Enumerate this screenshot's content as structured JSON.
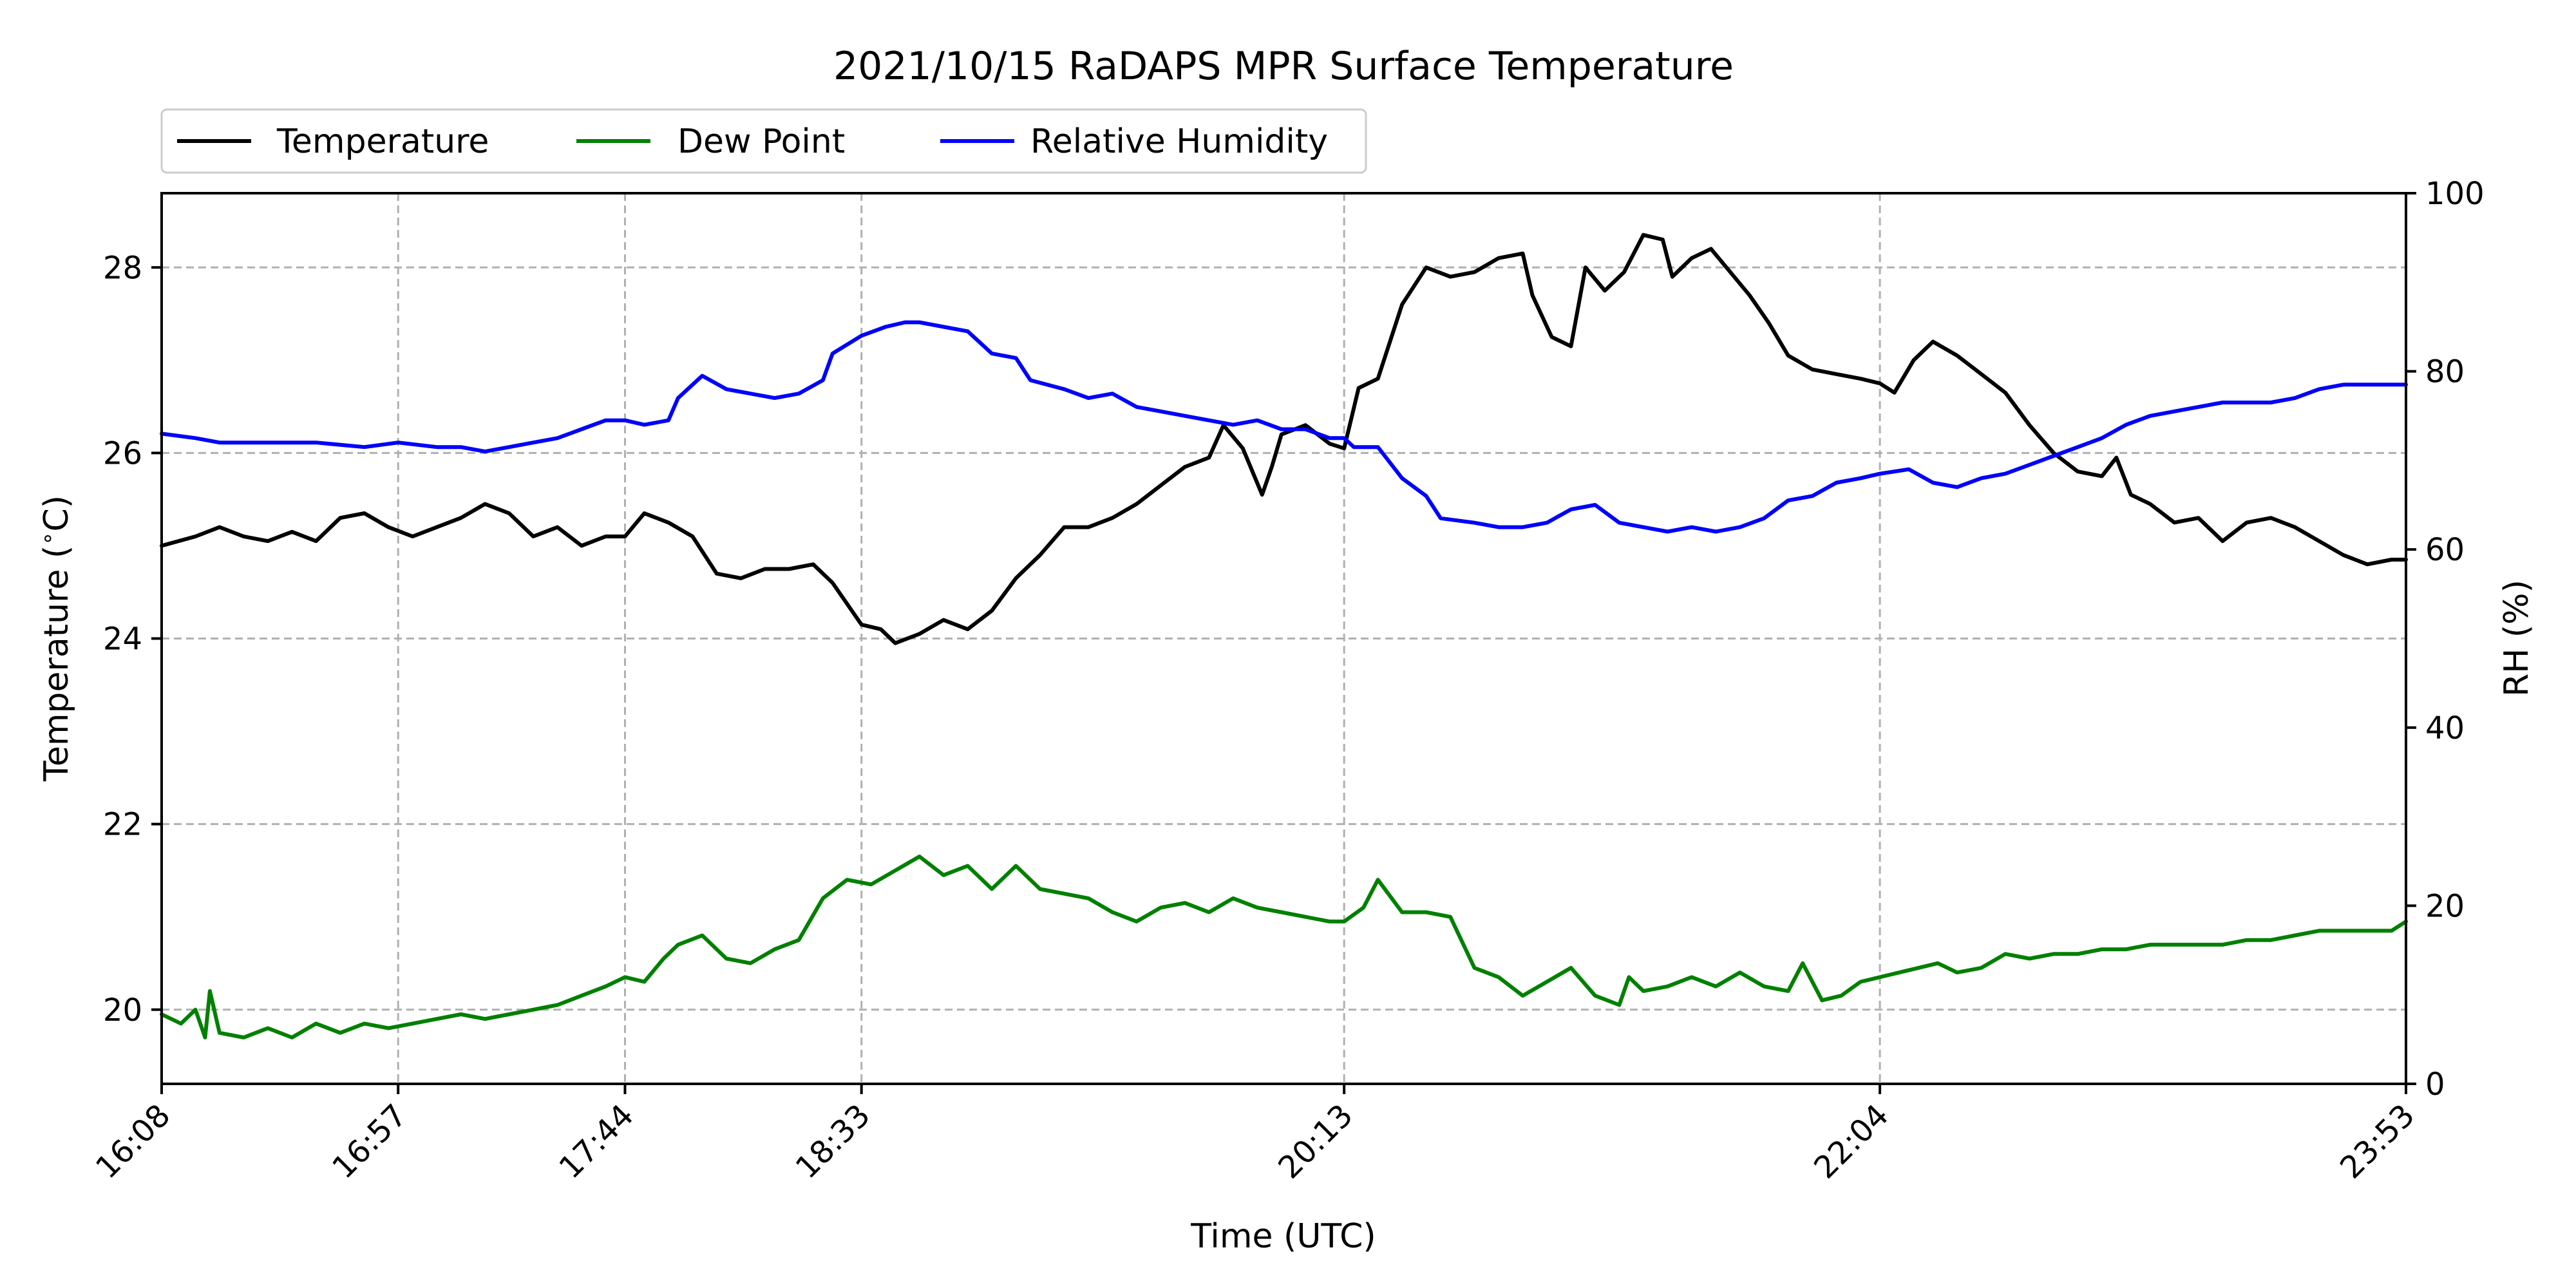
{
  "chart_data": {
    "type": "line",
    "title": "2021/10/15 RaDAPS MPR Surface Temperature",
    "xlabel": "Time (UTC)",
    "ylabel_left": "Temperature ($^\\circ$C)",
    "ylabel_right": "RH (%)",
    "xlim": [
      "16:08",
      "23:53"
    ],
    "ylim_left": [
      19.2,
      28.8
    ],
    "ylim_right": [
      0,
      100
    ],
    "x_ticks": [
      "16:08",
      "16:57",
      "17:44",
      "18:33",
      "20:13",
      "22:04",
      "23:53"
    ],
    "y_ticks_left": [
      20,
      22,
      24,
      26,
      28
    ],
    "y_ticks_right": [
      0,
      20,
      40,
      60,
      80,
      100
    ],
    "grid": true,
    "legend_position": "top-left, outside above plot",
    "series": [
      {
        "name": "Temperature",
        "axis": "left",
        "color": "#000000",
        "points": [
          [
            "16:08",
            25.0
          ],
          [
            "16:15",
            25.1
          ],
          [
            "16:20",
            25.2
          ],
          [
            "16:25",
            25.1
          ],
          [
            "16:30",
            25.05
          ],
          [
            "16:35",
            25.15
          ],
          [
            "16:40",
            25.05
          ],
          [
            "16:45",
            25.3
          ],
          [
            "16:50",
            25.35
          ],
          [
            "16:55",
            25.2
          ],
          [
            "17:00",
            25.1
          ],
          [
            "17:05",
            25.2
          ],
          [
            "17:10",
            25.3
          ],
          [
            "17:15",
            25.45
          ],
          [
            "17:20",
            25.35
          ],
          [
            "17:25",
            25.1
          ],
          [
            "17:30",
            25.2
          ],
          [
            "17:35",
            25.0
          ],
          [
            "17:40",
            25.1
          ],
          [
            "17:44",
            25.1
          ],
          [
            "17:48",
            25.35
          ],
          [
            "17:53",
            25.25
          ],
          [
            "17:58",
            25.1
          ],
          [
            "18:03",
            24.7
          ],
          [
            "18:08",
            24.65
          ],
          [
            "18:13",
            24.75
          ],
          [
            "18:18",
            24.75
          ],
          [
            "18:23",
            24.8
          ],
          [
            "18:27",
            24.6
          ],
          [
            "18:33",
            24.15
          ],
          [
            "18:37",
            24.1
          ],
          [
            "18:40",
            23.95
          ],
          [
            "18:45",
            24.05
          ],
          [
            "18:50",
            24.2
          ],
          [
            "18:55",
            24.1
          ],
          [
            "19:00",
            24.3
          ],
          [
            "19:05",
            24.65
          ],
          [
            "19:10",
            24.9
          ],
          [
            "19:15",
            25.2
          ],
          [
            "19:20",
            25.2
          ],
          [
            "19:25",
            25.3
          ],
          [
            "19:30",
            25.45
          ],
          [
            "19:35",
            25.65
          ],
          [
            "19:40",
            25.85
          ],
          [
            "19:45",
            25.95
          ],
          [
            "19:48",
            26.3
          ],
          [
            "19:52",
            26.05
          ],
          [
            "19:56",
            25.55
          ],
          [
            "19:58",
            25.85
          ],
          [
            "20:00",
            26.2
          ],
          [
            "20:05",
            26.3
          ],
          [
            "20:10",
            26.1
          ],
          [
            "20:13",
            26.05
          ],
          [
            "20:16",
            26.7
          ],
          [
            "20:20",
            26.8
          ],
          [
            "20:25",
            27.6
          ],
          [
            "20:30",
            28.0
          ],
          [
            "20:35",
            27.9
          ],
          [
            "20:40",
            27.95
          ],
          [
            "20:45",
            28.1
          ],
          [
            "20:50",
            28.15
          ],
          [
            "20:52",
            27.7
          ],
          [
            "20:56",
            27.25
          ],
          [
            "21:00",
            27.15
          ],
          [
            "21:03",
            28.0
          ],
          [
            "21:07",
            27.75
          ],
          [
            "21:11",
            27.95
          ],
          [
            "21:15",
            28.35
          ],
          [
            "21:19",
            28.3
          ],
          [
            "21:21",
            27.9
          ],
          [
            "21:25",
            28.1
          ],
          [
            "21:29",
            28.2
          ],
          [
            "21:33",
            27.95
          ],
          [
            "21:37",
            27.7
          ],
          [
            "21:41",
            27.4
          ],
          [
            "21:45",
            27.05
          ],
          [
            "21:50",
            26.9
          ],
          [
            "21:55",
            26.85
          ],
          [
            "22:00",
            26.8
          ],
          [
            "22:04",
            26.75
          ],
          [
            "22:07",
            26.65
          ],
          [
            "22:11",
            27.0
          ],
          [
            "22:15",
            27.2
          ],
          [
            "22:20",
            27.05
          ],
          [
            "22:25",
            26.85
          ],
          [
            "22:30",
            26.65
          ],
          [
            "22:35",
            26.3
          ],
          [
            "22:40",
            26.0
          ],
          [
            "22:45",
            25.8
          ],
          [
            "22:50",
            25.75
          ],
          [
            "22:53",
            25.95
          ],
          [
            "22:56",
            25.55
          ],
          [
            "23:00",
            25.45
          ],
          [
            "23:05",
            25.25
          ],
          [
            "23:10",
            25.3
          ],
          [
            "23:15",
            25.05
          ],
          [
            "23:20",
            25.25
          ],
          [
            "23:25",
            25.3
          ],
          [
            "23:30",
            25.2
          ],
          [
            "23:35",
            25.05
          ],
          [
            "23:40",
            24.9
          ],
          [
            "23:45",
            24.8
          ],
          [
            "23:50",
            24.85
          ],
          [
            "23:53",
            24.85
          ]
        ]
      },
      {
        "name": "Dew Point",
        "axis": "left",
        "color": "#008000",
        "points": [
          [
            "16:08",
            19.95
          ],
          [
            "16:12",
            19.85
          ],
          [
            "16:15",
            20.0
          ],
          [
            "16:17",
            19.7
          ],
          [
            "16:18",
            20.2
          ],
          [
            "16:20",
            19.75
          ],
          [
            "16:25",
            19.7
          ],
          [
            "16:30",
            19.8
          ],
          [
            "16:35",
            19.7
          ],
          [
            "16:40",
            19.85
          ],
          [
            "16:45",
            19.75
          ],
          [
            "16:50",
            19.85
          ],
          [
            "16:55",
            19.8
          ],
          [
            "17:00",
            19.85
          ],
          [
            "17:05",
            19.9
          ],
          [
            "17:10",
            19.95
          ],
          [
            "17:15",
            19.9
          ],
          [
            "17:20",
            19.95
          ],
          [
            "17:25",
            20.0
          ],
          [
            "17:30",
            20.05
          ],
          [
            "17:35",
            20.15
          ],
          [
            "17:40",
            20.25
          ],
          [
            "17:44",
            20.35
          ],
          [
            "17:48",
            20.3
          ],
          [
            "17:52",
            20.55
          ],
          [
            "17:55",
            20.7
          ],
          [
            "18:00",
            20.8
          ],
          [
            "18:05",
            20.55
          ],
          [
            "18:10",
            20.5
          ],
          [
            "18:15",
            20.65
          ],
          [
            "18:20",
            20.75
          ],
          [
            "18:25",
            21.2
          ],
          [
            "18:30",
            21.4
          ],
          [
            "18:35",
            21.35
          ],
          [
            "18:40",
            21.5
          ],
          [
            "18:45",
            21.65
          ],
          [
            "18:50",
            21.45
          ],
          [
            "18:55",
            21.55
          ],
          [
            "19:00",
            21.3
          ],
          [
            "19:05",
            21.55
          ],
          [
            "19:10",
            21.3
          ],
          [
            "19:15",
            21.25
          ],
          [
            "19:20",
            21.2
          ],
          [
            "19:25",
            21.05
          ],
          [
            "19:30",
            20.95
          ],
          [
            "19:35",
            21.1
          ],
          [
            "19:40",
            21.15
          ],
          [
            "19:45",
            21.05
          ],
          [
            "19:50",
            21.2
          ],
          [
            "19:55",
            21.1
          ],
          [
            "20:00",
            21.05
          ],
          [
            "20:05",
            21.0
          ],
          [
            "20:10",
            20.95
          ],
          [
            "20:13",
            20.95
          ],
          [
            "20:17",
            21.1
          ],
          [
            "20:20",
            21.4
          ],
          [
            "20:25",
            21.05
          ],
          [
            "20:30",
            21.05
          ],
          [
            "20:35",
            21.0
          ],
          [
            "20:40",
            20.45
          ],
          [
            "20:45",
            20.35
          ],
          [
            "20:50",
            20.15
          ],
          [
            "20:55",
            20.3
          ],
          [
            "21:00",
            20.45
          ],
          [
            "21:05",
            20.15
          ],
          [
            "21:10",
            20.05
          ],
          [
            "21:12",
            20.35
          ],
          [
            "21:15",
            20.2
          ],
          [
            "21:20",
            20.25
          ],
          [
            "21:25",
            20.35
          ],
          [
            "21:30",
            20.25
          ],
          [
            "21:35",
            20.4
          ],
          [
            "21:40",
            20.25
          ],
          [
            "21:45",
            20.2
          ],
          [
            "21:48",
            20.5
          ],
          [
            "21:52",
            20.1
          ],
          [
            "21:56",
            20.15
          ],
          [
            "22:00",
            20.3
          ],
          [
            "22:04",
            20.35
          ],
          [
            "22:08",
            20.4
          ],
          [
            "22:12",
            20.45
          ],
          [
            "22:16",
            20.5
          ],
          [
            "22:20",
            20.4
          ],
          [
            "22:25",
            20.45
          ],
          [
            "22:30",
            20.6
          ],
          [
            "22:35",
            20.55
          ],
          [
            "22:40",
            20.6
          ],
          [
            "22:45",
            20.6
          ],
          [
            "22:50",
            20.65
          ],
          [
            "22:55",
            20.65
          ],
          [
            "23:00",
            20.7
          ],
          [
            "23:05",
            20.7
          ],
          [
            "23:10",
            20.7
          ],
          [
            "23:15",
            20.7
          ],
          [
            "23:20",
            20.75
          ],
          [
            "23:25",
            20.75
          ],
          [
            "23:30",
            20.8
          ],
          [
            "23:35",
            20.85
          ],
          [
            "23:40",
            20.85
          ],
          [
            "23:45",
            20.85
          ],
          [
            "23:50",
            20.85
          ],
          [
            "23:53",
            20.95
          ]
        ]
      },
      {
        "name": "Relative Humidity",
        "axis": "right",
        "color": "#0000ff",
        "points": [
          [
            "16:08",
            73
          ],
          [
            "16:15",
            72.5
          ],
          [
            "16:20",
            72
          ],
          [
            "16:30",
            72
          ],
          [
            "16:40",
            72
          ],
          [
            "16:50",
            71.5
          ],
          [
            "16:57",
            72
          ],
          [
            "17:05",
            71.5
          ],
          [
            "17:10",
            71.5
          ],
          [
            "17:15",
            71
          ],
          [
            "17:20",
            71.5
          ],
          [
            "17:25",
            72
          ],
          [
            "17:30",
            72.5
          ],
          [
            "17:35",
            73.5
          ],
          [
            "17:40",
            74.5
          ],
          [
            "17:44",
            74.5
          ],
          [
            "17:48",
            74
          ],
          [
            "17:53",
            74.5
          ],
          [
            "17:55",
            77
          ],
          [
            "18:00",
            79.5
          ],
          [
            "18:05",
            78
          ],
          [
            "18:10",
            77.5
          ],
          [
            "18:15",
            77
          ],
          [
            "18:20",
            77.5
          ],
          [
            "18:25",
            79
          ],
          [
            "18:27",
            82
          ],
          [
            "18:33",
            84
          ],
          [
            "18:38",
            85
          ],
          [
            "18:42",
            85.5
          ],
          [
            "18:45",
            85.5
          ],
          [
            "18:50",
            85
          ],
          [
            "18:55",
            84.5
          ],
          [
            "19:00",
            82
          ],
          [
            "19:05",
            81.5
          ],
          [
            "19:08",
            79
          ],
          [
            "19:15",
            78
          ],
          [
            "19:20",
            77
          ],
          [
            "19:25",
            77.5
          ],
          [
            "19:30",
            76
          ],
          [
            "19:35",
            75.5
          ],
          [
            "19:40",
            75
          ],
          [
            "19:45",
            74.5
          ],
          [
            "19:50",
            74
          ],
          [
            "19:55",
            74.5
          ],
          [
            "20:00",
            73.5
          ],
          [
            "20:05",
            73.5
          ],
          [
            "20:10",
            72.5
          ],
          [
            "20:13",
            72.5
          ],
          [
            "20:15",
            71.5
          ],
          [
            "20:20",
            71.5
          ],
          [
            "20:25",
            68
          ],
          [
            "20:30",
            66
          ],
          [
            "20:33",
            63.5
          ],
          [
            "20:40",
            63
          ],
          [
            "20:45",
            62.5
          ],
          [
            "20:50",
            62.5
          ],
          [
            "20:55",
            63
          ],
          [
            "21:00",
            64.5
          ],
          [
            "21:05",
            65
          ],
          [
            "21:10",
            63
          ],
          [
            "21:15",
            62.5
          ],
          [
            "21:20",
            62
          ],
          [
            "21:25",
            62.5
          ],
          [
            "21:30",
            62
          ],
          [
            "21:35",
            62.5
          ],
          [
            "21:40",
            63.5
          ],
          [
            "21:45",
            65.5
          ],
          [
            "21:50",
            66
          ],
          [
            "21:55",
            67.5
          ],
          [
            "22:00",
            68
          ],
          [
            "22:04",
            68.5
          ],
          [
            "22:10",
            69
          ],
          [
            "22:15",
            67.5
          ],
          [
            "22:20",
            67
          ],
          [
            "22:25",
            68
          ],
          [
            "22:30",
            68.5
          ],
          [
            "22:35",
            69.5
          ],
          [
            "22:40",
            70.5
          ],
          [
            "22:45",
            71.5
          ],
          [
            "22:50",
            72.5
          ],
          [
            "22:55",
            74
          ],
          [
            "23:00",
            75
          ],
          [
            "23:05",
            75.5
          ],
          [
            "23:10",
            76
          ],
          [
            "23:15",
            76.5
          ],
          [
            "23:20",
            76.5
          ],
          [
            "23:25",
            76.5
          ],
          [
            "23:30",
            77
          ],
          [
            "23:35",
            78
          ],
          [
            "23:40",
            78.5
          ],
          [
            "23:45",
            78.5
          ],
          [
            "23:53",
            78.5
          ]
        ]
      }
    ]
  }
}
